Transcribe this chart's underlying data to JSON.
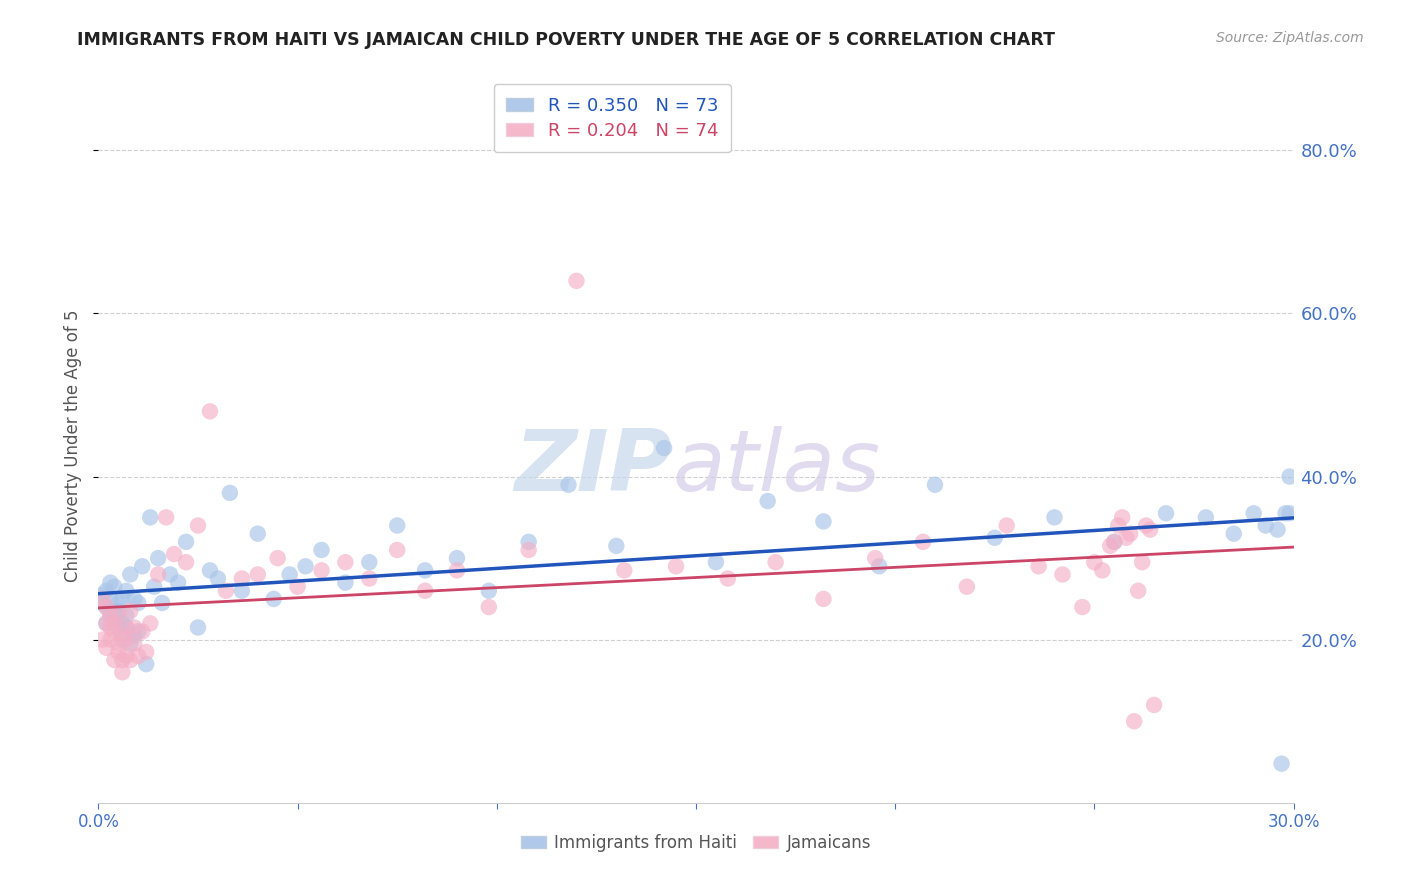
{
  "title": "IMMIGRANTS FROM HAITI VS JAMAICAN CHILD POVERTY UNDER THE AGE OF 5 CORRELATION CHART",
  "source": "Source: ZipAtlas.com",
  "ylabel": "Child Poverty Under the Age of 5",
  "xlim": [
    0.0,
    0.3
  ],
  "ylim": [
    0.0,
    0.875
  ],
  "yticks_right": [
    0.2,
    0.4,
    0.6,
    0.8
  ],
  "legend_labels": [
    "Immigrants from Haiti",
    "Jamaicans"
  ],
  "R_haiti": 0.35,
  "N_haiti": 73,
  "R_jamaican": 0.204,
  "N_jamaican": 74,
  "color_haiti": "#a8c4e8",
  "color_jamaican": "#f4afc5",
  "line_color_haiti": "#2255bb",
  "line_color_jamaican": "#cc4466",
  "watermark_zip": "ZIP",
  "watermark_atlas": "atlas",
  "background_color": "#ffffff",
  "grid_color": "#d0d0d0",
  "title_color": "#222222",
  "axis_label_color": "#555555",
  "tick_color_right": "#4472c4",
  "tick_color_bottom": "#4472c4",
  "haiti_x": [
    0.001,
    0.001,
    0.002,
    0.002,
    0.002,
    0.003,
    0.003,
    0.003,
    0.004,
    0.004,
    0.004,
    0.005,
    0.005,
    0.005,
    0.006,
    0.006,
    0.006,
    0.007,
    0.007,
    0.007,
    0.008,
    0.008,
    0.009,
    0.009,
    0.01,
    0.01,
    0.011,
    0.012,
    0.013,
    0.014,
    0.015,
    0.016,
    0.018,
    0.02,
    0.022,
    0.025,
    0.028,
    0.03,
    0.033,
    0.036,
    0.04,
    0.044,
    0.048,
    0.052,
    0.056,
    0.062,
    0.068,
    0.075,
    0.082,
    0.09,
    0.098,
    0.108,
    0.118,
    0.13,
    0.142,
    0.155,
    0.168,
    0.182,
    0.196,
    0.21,
    0.225,
    0.24,
    0.255,
    0.268,
    0.278,
    0.285,
    0.29,
    0.293,
    0.296,
    0.297,
    0.298,
    0.299,
    0.299
  ],
  "haiti_y": [
    0.245,
    0.255,
    0.24,
    0.26,
    0.22,
    0.25,
    0.27,
    0.23,
    0.235,
    0.265,
    0.225,
    0.215,
    0.245,
    0.235,
    0.25,
    0.22,
    0.2,
    0.26,
    0.215,
    0.23,
    0.195,
    0.28,
    0.205,
    0.25,
    0.21,
    0.245,
    0.29,
    0.17,
    0.35,
    0.265,
    0.3,
    0.245,
    0.28,
    0.27,
    0.32,
    0.215,
    0.285,
    0.275,
    0.38,
    0.26,
    0.33,
    0.25,
    0.28,
    0.29,
    0.31,
    0.27,
    0.295,
    0.34,
    0.285,
    0.3,
    0.26,
    0.32,
    0.39,
    0.315,
    0.435,
    0.295,
    0.37,
    0.345,
    0.29,
    0.39,
    0.325,
    0.35,
    0.32,
    0.355,
    0.35,
    0.33,
    0.355,
    0.34,
    0.335,
    0.048,
    0.355,
    0.355,
    0.4
  ],
  "jamaican_x": [
    0.001,
    0.001,
    0.002,
    0.002,
    0.002,
    0.003,
    0.003,
    0.003,
    0.004,
    0.004,
    0.004,
    0.005,
    0.005,
    0.005,
    0.006,
    0.006,
    0.006,
    0.007,
    0.007,
    0.007,
    0.008,
    0.008,
    0.009,
    0.009,
    0.01,
    0.011,
    0.012,
    0.013,
    0.015,
    0.017,
    0.019,
    0.022,
    0.025,
    0.028,
    0.032,
    0.036,
    0.04,
    0.045,
    0.05,
    0.056,
    0.062,
    0.068,
    0.075,
    0.082,
    0.09,
    0.098,
    0.108,
    0.12,
    0.132,
    0.145,
    0.158,
    0.17,
    0.182,
    0.195,
    0.207,
    0.218,
    0.228,
    0.236,
    0.242,
    0.247,
    0.25,
    0.252,
    0.254,
    0.255,
    0.256,
    0.257,
    0.258,
    0.259,
    0.26,
    0.261,
    0.262,
    0.263,
    0.264,
    0.265
  ],
  "jamaican_y": [
    0.2,
    0.25,
    0.22,
    0.24,
    0.19,
    0.215,
    0.23,
    0.2,
    0.175,
    0.22,
    0.21,
    0.195,
    0.23,
    0.185,
    0.205,
    0.175,
    0.16,
    0.215,
    0.18,
    0.2,
    0.175,
    0.235,
    0.195,
    0.215,
    0.18,
    0.21,
    0.185,
    0.22,
    0.28,
    0.35,
    0.305,
    0.295,
    0.34,
    0.48,
    0.26,
    0.275,
    0.28,
    0.3,
    0.265,
    0.285,
    0.295,
    0.275,
    0.31,
    0.26,
    0.285,
    0.24,
    0.31,
    0.64,
    0.285,
    0.29,
    0.275,
    0.295,
    0.25,
    0.3,
    0.32,
    0.265,
    0.34,
    0.29,
    0.28,
    0.24,
    0.295,
    0.285,
    0.315,
    0.32,
    0.34,
    0.35,
    0.325,
    0.33,
    0.1,
    0.26,
    0.295,
    0.34,
    0.335,
    0.12
  ]
}
